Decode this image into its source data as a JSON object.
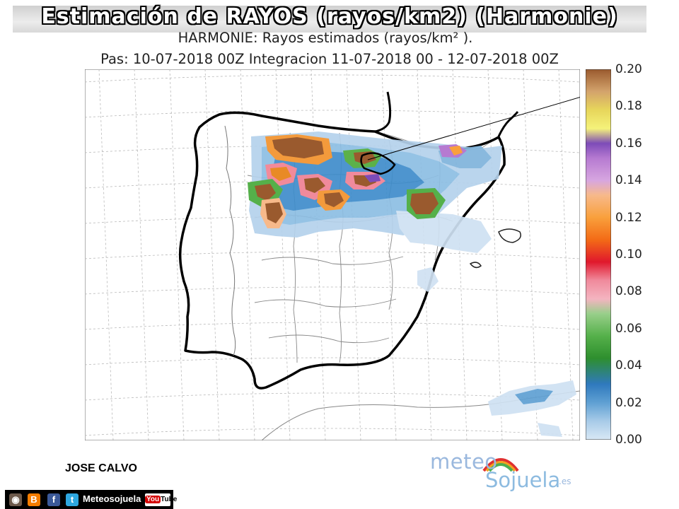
{
  "header": {
    "banner_title": "Estimación de RAYOS (rayos/km2) (Harmonie)",
    "subtitle_line1": "HARMONIE: Rayos estimados  (rayos/km² ).",
    "subtitle_line2": "Pas: 10-07-2018 00Z Integracion 11-07-2018 00 - 12-07-2018 00Z"
  },
  "colorbar": {
    "ticks": [
      "0.00",
      "0.02",
      "0.04",
      "0.06",
      "0.08",
      "0.10",
      "0.12",
      "0.14",
      "0.16",
      "0.18",
      "0.20"
    ],
    "colors": [
      "#cfe1f2",
      "#7fb4dc",
      "#2f79bd",
      "#55b04a",
      "#2e8f2e",
      "#f08a9c",
      "#e0182c",
      "#f36b16",
      "#f9a03c",
      "#f7b98a",
      "#b67ad1",
      "#7d4bb8",
      "#f5f27a",
      "#e7d65b",
      "#d3a36c",
      "#9a5a2e"
    ],
    "range": [
      0.0,
      0.2
    ]
  },
  "footer": {
    "author": "JOSE CALVO",
    "brand_meteo": "meteo",
    "brand_sojuela": "Sojuela",
    "brand_es": ".es",
    "social_name": "Meteosojuela",
    "youtube_you": "You",
    "youtube_tube": "Tube"
  },
  "icons": [
    "instagram-icon",
    "blogger-icon",
    "facebook-icon",
    "twitter-icon",
    "youtube-icon"
  ]
}
